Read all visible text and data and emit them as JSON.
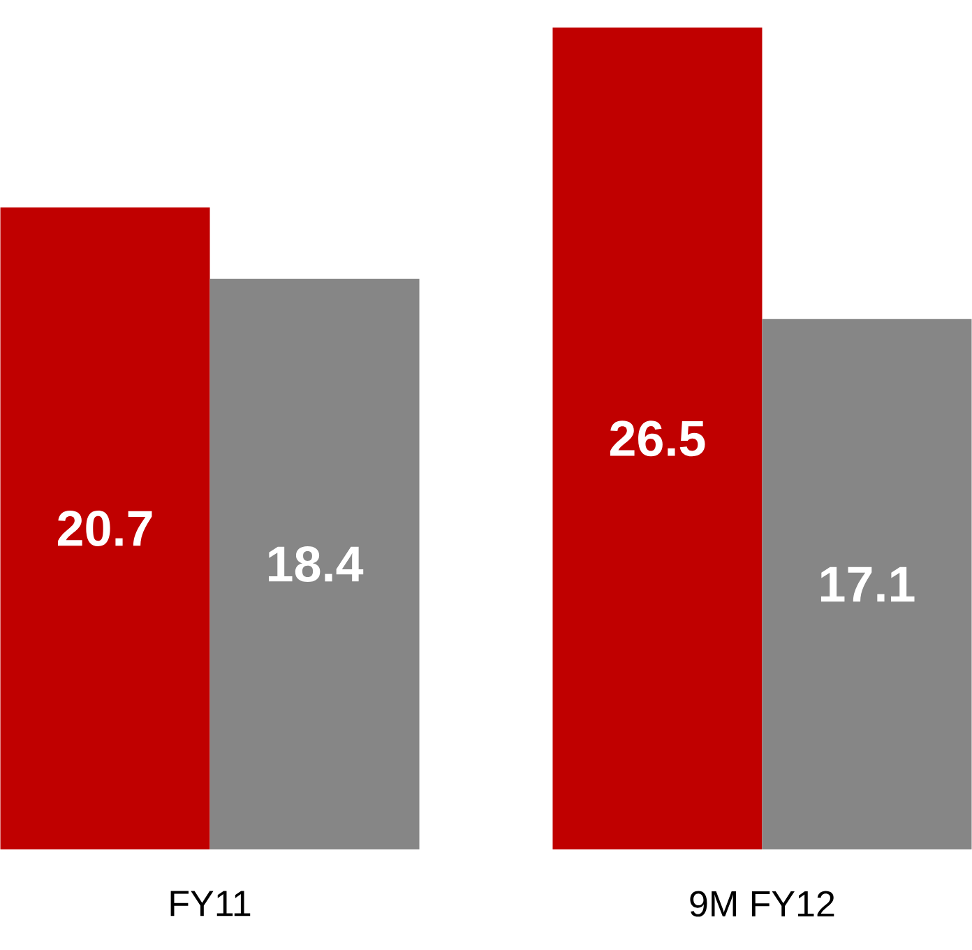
{
  "chart_data": {
    "type": "bar",
    "categories": [
      "FY11",
      "9M FY12"
    ],
    "series": [
      {
        "color": "#c00000",
        "values": [
          20.7,
          26.5
        ]
      },
      {
        "color": "#868686",
        "values": [
          18.4,
          17.1
        ]
      }
    ],
    "data_labels": true,
    "tick_labels": "x",
    "grid": false
  }
}
